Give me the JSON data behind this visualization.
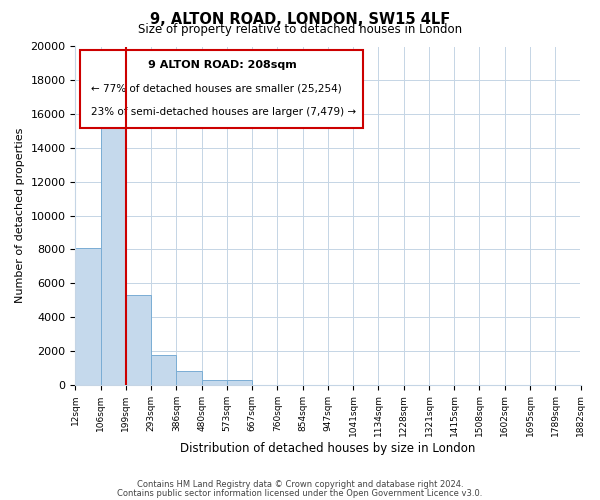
{
  "title": "9, ALTON ROAD, LONDON, SW15 4LF",
  "subtitle": "Size of property relative to detached houses in London",
  "xlabel": "Distribution of detached houses by size in London",
  "ylabel": "Number of detached properties",
  "bin_labels": [
    "12sqm",
    "106sqm",
    "199sqm",
    "293sqm",
    "386sqm",
    "480sqm",
    "573sqm",
    "667sqm",
    "760sqm",
    "854sqm",
    "947sqm",
    "1041sqm",
    "1134sqm",
    "1228sqm",
    "1321sqm",
    "1415sqm",
    "1508sqm",
    "1602sqm",
    "1695sqm",
    "1789sqm",
    "1882sqm"
  ],
  "bar_heights": [
    8100,
    16500,
    5300,
    1750,
    800,
    300,
    270,
    0,
    0,
    0,
    0,
    0,
    0,
    0,
    0,
    0,
    0,
    0,
    0,
    0
  ],
  "ylim": [
    0,
    20000
  ],
  "yticks": [
    0,
    2000,
    4000,
    6000,
    8000,
    10000,
    12000,
    14000,
    16000,
    18000,
    20000
  ],
  "bar_color": "#c5d9ec",
  "bar_edge_color": "#7aadd4",
  "property_line_x": 2,
  "property_line_color": "#cc0000",
  "annotation_title": "9 ALTON ROAD: 208sqm",
  "annotation_line1": "← 77% of detached houses are smaller (25,254)",
  "annotation_line2": "23% of semi-detached houses are larger (7,479) →",
  "annotation_box_color": "#cc0000",
  "footer_line1": "Contains HM Land Registry data © Crown copyright and database right 2024.",
  "footer_line2": "Contains public sector information licensed under the Open Government Licence v3.0."
}
